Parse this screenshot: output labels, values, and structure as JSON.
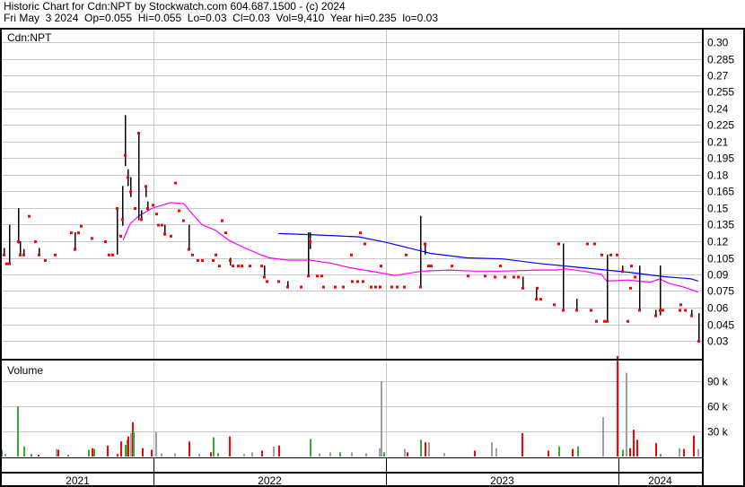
{
  "header": {
    "title": "Historic Chart for Cdn:NPT by Stockwatch.com 604.687.1500 - (c) 2024",
    "quote_line": "Fri May  3 2024  Op=0.055  Hi=0.055  Lo=0.03  Cl=0.03  Vol=9,410  Year hi=0.235  lo=0.03"
  },
  "colors": {
    "bar": "#000000",
    "close": "#ff0000",
    "ma_long": "#0000ff",
    "ma_short": "#ff00ff",
    "vol_up": "#33aa33",
    "vol_down": "#ff0000",
    "vol_flat": "#a0a0a0",
    "grid": "#c8c8c8"
  },
  "chart_data": {
    "type": "line",
    "symbol_label": "Cdn:NPT",
    "volume_label": "Volume",
    "price_axis": {
      "ylim": [
        0.03,
        0.3
      ],
      "ticks": [
        "0.30",
        "0.285",
        "0.27",
        "0.255",
        "0.24",
        "0.225",
        "0.21",
        "0.195",
        "0.18",
        "0.165",
        "0.15",
        "0.135",
        "0.12",
        "0.105",
        "0.09",
        "0.075",
        "0.06",
        "0.045",
        "0.03"
      ]
    },
    "volume_axis": {
      "ylim": [
        0,
        120000
      ],
      "ticks": [
        "90 k",
        "60 k",
        "30 k"
      ]
    },
    "x_axis": {
      "years": [
        "2021",
        "2022",
        "2023",
        "2024"
      ]
    },
    "grid": true,
    "price_bars_fields": [
      "t",
      "high",
      "low",
      "close"
    ],
    "price_bars": [
      [
        2021.355,
        0.114,
        0.108,
        0.108
      ],
      [
        2021.367,
        0.1,
        0.1,
        0.1
      ],
      [
        2021.379,
        0.135,
        0.1,
        0.1
      ],
      [
        2021.417,
        0.15,
        0.118,
        0.12
      ],
      [
        2021.425,
        0.12,
        0.108,
        0.108
      ],
      [
        2021.44,
        0.113,
        0.108,
        0.108
      ],
      [
        2021.464,
        0.143,
        0.143,
        0.143
      ],
      [
        2021.491,
        0.12,
        0.12,
        0.12
      ],
      [
        2021.506,
        0.114,
        0.108,
        0.108
      ],
      [
        2021.533,
        0.103,
        0.103,
        0.103
      ],
      [
        2021.575,
        0.108,
        0.108,
        0.108
      ],
      [
        2021.645,
        0.128,
        0.128,
        0.128
      ],
      [
        2021.66,
        0.128,
        0.113,
        0.113
      ],
      [
        2021.676,
        0.128,
        0.128,
        0.128
      ],
      [
        2021.687,
        0.134,
        0.134,
        0.134
      ],
      [
        2021.734,
        0.123,
        0.123,
        0.123
      ],
      [
        2021.792,
        0.12,
        0.12,
        0.12
      ],
      [
        2021.807,
        0.108,
        0.108,
        0.108
      ],
      [
        2021.823,
        0.108,
        0.108,
        0.108
      ],
      [
        2021.842,
        0.15,
        0.108,
        0.15
      ],
      [
        2021.857,
        0.125,
        0.125,
        0.125
      ],
      [
        2021.865,
        0.17,
        0.134,
        0.14
      ],
      [
        2021.877,
        0.234,
        0.188,
        0.198
      ],
      [
        2021.888,
        0.185,
        0.17,
        0.178
      ],
      [
        2021.9,
        0.178,
        0.16,
        0.165
      ],
      [
        2021.919,
        0.15,
        0.15,
        0.15
      ],
      [
        2021.934,
        0.219,
        0.139,
        0.218
      ],
      [
        2021.946,
        0.148,
        0.14,
        0.14
      ],
      [
        2021.965,
        0.17,
        0.16,
        0.17
      ],
      [
        2021.973,
        0.156,
        0.148,
        0.15
      ],
      [
        2021.996,
        0.153,
        0.153,
        0.153
      ],
      [
        2022.012,
        0.145,
        0.145,
        0.145
      ],
      [
        2022.019,
        0.135,
        0.135,
        0.135
      ],
      [
        2022.035,
        0.135,
        0.135,
        0.135
      ],
      [
        2022.046,
        0.135,
        0.125,
        0.127
      ],
      [
        2022.073,
        0.125,
        0.125,
        0.125
      ],
      [
        2022.093,
        0.173,
        0.173,
        0.173
      ],
      [
        2022.108,
        0.148,
        0.148,
        0.148
      ],
      [
        2022.127,
        0.139,
        0.139,
        0.139
      ],
      [
        2022.151,
        0.135,
        0.113,
        0.113
      ],
      [
        2022.166,
        0.108,
        0.108,
        0.108
      ],
      [
        2022.189,
        0.103,
        0.103,
        0.103
      ],
      [
        2022.209,
        0.103,
        0.103,
        0.103
      ],
      [
        2022.255,
        0.103,
        0.103,
        0.103
      ],
      [
        2022.266,
        0.108,
        0.108,
        0.108
      ],
      [
        2022.282,
        0.098,
        0.098,
        0.098
      ],
      [
        2022.293,
        0.139,
        0.139,
        0.139
      ],
      [
        2022.309,
        0.128,
        0.128,
        0.128
      ],
      [
        2022.328,
        0.105,
        0.098,
        0.103
      ],
      [
        2022.34,
        0.098,
        0.098,
        0.098
      ],
      [
        2022.363,
        0.098,
        0.098,
        0.098
      ],
      [
        2022.378,
        0.098,
        0.098,
        0.098
      ],
      [
        2022.413,
        0.098,
        0.098,
        0.098
      ],
      [
        2022.463,
        0.098,
        0.098,
        0.098
      ],
      [
        2022.475,
        0.098,
        0.089,
        0.088
      ],
      [
        2022.486,
        0.084,
        0.084,
        0.084
      ],
      [
        2022.537,
        0.084,
        0.084,
        0.084
      ],
      [
        2022.575,
        0.084,
        0.079,
        0.079
      ],
      [
        2022.633,
        0.079,
        0.079,
        0.079
      ],
      [
        2022.664,
        0.128,
        0.088,
        0.089
      ],
      [
        2022.672,
        0.128,
        0.113,
        0.12
      ],
      [
        2022.703,
        0.089,
        0.089,
        0.089
      ],
      [
        2022.722,
        0.089,
        0.089,
        0.089
      ],
      [
        2022.73,
        0.079,
        0.079,
        0.079
      ],
      [
        2022.78,
        0.079,
        0.079,
        0.079
      ],
      [
        2022.815,
        0.079,
        0.079,
        0.079
      ],
      [
        2022.849,
        0.108,
        0.108,
        0.108
      ],
      [
        2022.853,
        0.084,
        0.084,
        0.084
      ],
      [
        2022.876,
        0.084,
        0.084,
        0.084
      ],
      [
        2022.888,
        0.128,
        0.128,
        0.128
      ],
      [
        2022.899,
        0.084,
        0.084,
        0.084
      ],
      [
        2022.907,
        0.118,
        0.118,
        0.118
      ],
      [
        2022.934,
        0.079,
        0.079,
        0.079
      ],
      [
        2022.953,
        0.079,
        0.079,
        0.079
      ],
      [
        2022.973,
        0.079,
        0.079,
        0.079
      ],
      [
        2022.977,
        0.098,
        0.098,
        0.098
      ],
      [
        2023.023,
        0.079,
        0.079,
        0.079
      ],
      [
        2023.046,
        0.079,
        0.079,
        0.079
      ],
      [
        2023.077,
        0.079,
        0.079,
        0.079
      ],
      [
        2023.085,
        0.108,
        0.108,
        0.108
      ],
      [
        2023.146,
        0.143,
        0.079,
        0.079
      ],
      [
        2023.166,
        0.118,
        0.108,
        0.118
      ],
      [
        2023.181,
        0.098,
        0.098,
        0.098
      ],
      [
        2023.193,
        0.098,
        0.098,
        0.098
      ],
      [
        2023.282,
        0.098,
        0.098,
        0.098
      ],
      [
        2023.351,
        0.089,
        0.089,
        0.089
      ],
      [
        2023.424,
        0.089,
        0.089,
        0.089
      ],
      [
        2023.467,
        0.088,
        0.088,
        0.088
      ],
      [
        2023.49,
        0.098,
        0.098,
        0.098
      ],
      [
        2023.509,
        0.088,
        0.088,
        0.088
      ],
      [
        2023.548,
        0.088,
        0.088,
        0.088
      ],
      [
        2023.567,
        0.088,
        0.088,
        0.088
      ],
      [
        2023.587,
        0.088,
        0.078,
        0.078
      ],
      [
        2023.644,
        0.078,
        0.068,
        0.068
      ],
      [
        2023.648,
        0.078,
        0.078,
        0.078
      ],
      [
        2023.664,
        0.068,
        0.068,
        0.068
      ],
      [
        2023.722,
        0.063,
        0.063,
        0.063
      ],
      [
        2023.741,
        0.118,
        0.118,
        0.118
      ],
      [
        2023.76,
        0.118,
        0.058,
        0.058
      ],
      [
        2023.818,
        0.068,
        0.058,
        0.058
      ],
      [
        2023.864,
        0.118,
        0.118,
        0.118
      ],
      [
        2023.88,
        0.058,
        0.058,
        0.058
      ],
      [
        2023.895,
        0.118,
        0.118,
        0.118
      ],
      [
        2023.903,
        0.048,
        0.048,
        0.048
      ],
      [
        2023.926,
        0.108,
        0.108,
        0.108
      ],
      [
        2023.938,
        0.048,
        0.048,
        0.048
      ],
      [
        2023.949,
        0.108,
        0.048,
        0.048
      ],
      [
        2023.965,
        0.108,
        0.108,
        0.108
      ],
      [
        2023.992,
        0.108,
        0.108,
        0.108
      ],
      [
        2024.015,
        0.098,
        0.093,
        0.093
      ],
      [
        2024.038,
        0.048,
        0.048,
        0.048
      ],
      [
        2024.05,
        0.078,
        0.078,
        0.078
      ],
      [
        2024.054,
        0.098,
        0.098,
        0.098
      ],
      [
        2024.069,
        0.088,
        0.088,
        0.088
      ],
      [
        2024.088,
        0.098,
        0.058,
        0.058
      ],
      [
        2024.158,
        0.058,
        0.053,
        0.053
      ],
      [
        2024.177,
        0.098,
        0.053,
        0.058
      ],
      [
        2024.189,
        0.058,
        0.058,
        0.058
      ],
      [
        2024.262,
        0.058,
        0.058,
        0.058
      ],
      [
        2024.266,
        0.063,
        0.063,
        0.063
      ],
      [
        2024.285,
        0.058,
        0.058,
        0.058
      ],
      [
        2024.312,
        0.058,
        0.053,
        0.053
      ],
      [
        2024.343,
        0.055,
        0.03,
        0.03
      ]
    ],
    "series": [
      {
        "color_key": "ma_long",
        "points": [
          [
            2022.537,
            0.127
          ],
          [
            2022.672,
            0.126
          ],
          [
            2022.884,
            0.124
          ],
          [
            2023.0,
            0.119
          ],
          [
            2023.154,
            0.111
          ],
          [
            2023.193,
            0.109
          ],
          [
            2023.347,
            0.105
          ],
          [
            2023.502,
            0.104
          ],
          [
            2023.656,
            0.1
          ],
          [
            2023.849,
            0.096
          ],
          [
            2024.042,
            0.092
          ],
          [
            2024.197,
            0.088
          ],
          [
            2024.313,
            0.086
          ],
          [
            2024.343,
            0.084
          ]
        ]
      },
      {
        "color_key": "ma_short",
        "points": [
          [
            2021.869,
            0.121
          ],
          [
            2021.9,
            0.136
          ],
          [
            2021.938,
            0.143
          ],
          [
            2021.996,
            0.15
          ],
          [
            2022.073,
            0.155
          ],
          [
            2022.131,
            0.154
          ],
          [
            2022.17,
            0.144
          ],
          [
            2022.209,
            0.135
          ],
          [
            2022.266,
            0.13
          ],
          [
            2022.324,
            0.121
          ],
          [
            2022.382,
            0.115
          ],
          [
            2022.459,
            0.108
          ],
          [
            2022.498,
            0.105
          ],
          [
            2022.575,
            0.103
          ],
          [
            2022.672,
            0.103
          ],
          [
            2022.768,
            0.1
          ],
          [
            2022.846,
            0.096
          ],
          [
            2022.961,
            0.092
          ],
          [
            2023.039,
            0.089
          ],
          [
            2023.154,
            0.093
          ],
          [
            2023.27,
            0.094
          ],
          [
            2023.386,
            0.093
          ],
          [
            2023.502,
            0.093
          ],
          [
            2023.656,
            0.094
          ],
          [
            2023.734,
            0.094
          ],
          [
            2023.772,
            0.095
          ],
          [
            2023.849,
            0.093
          ],
          [
            2023.927,
            0.09
          ],
          [
            2023.95,
            0.084
          ],
          [
            2024.042,
            0.085
          ],
          [
            2024.081,
            0.084
          ],
          [
            2024.139,
            0.083
          ],
          [
            2024.178,
            0.086
          ],
          [
            2024.216,
            0.082
          ],
          [
            2024.274,
            0.079
          ],
          [
            2024.343,
            0.074
          ]
        ]
      }
    ],
    "volume_fields": [
      "t",
      "volume",
      "direction"
    ],
    "volume": [
      [
        2021.344,
        8000,
        "up"
      ],
      [
        2021.359,
        3000,
        "flat"
      ],
      [
        2021.413,
        60000,
        "up"
      ],
      [
        2021.44,
        12000,
        "up"
      ],
      [
        2021.471,
        3000,
        "up"
      ],
      [
        2021.502,
        2000,
        "down"
      ],
      [
        2021.58,
        9000,
        "flat"
      ],
      [
        2021.588,
        8000,
        "down"
      ],
      [
        2021.63,
        2000,
        "up"
      ],
      [
        2021.718,
        8000,
        "up"
      ],
      [
        2021.734,
        10000,
        "down"
      ],
      [
        2021.742,
        9000,
        "up"
      ],
      [
        2021.8,
        13000,
        "down"
      ],
      [
        2021.842,
        3000,
        "down"
      ],
      [
        2021.857,
        18000,
        "down"
      ],
      [
        2021.877,
        14000,
        "up"
      ],
      [
        2021.884,
        20000,
        "up"
      ],
      [
        2021.888,
        24000,
        "down"
      ],
      [
        2021.9,
        28000,
        "flat"
      ],
      [
        2021.907,
        41000,
        "down"
      ],
      [
        2021.911,
        30000,
        "up"
      ],
      [
        2021.95,
        10000,
        "down"
      ],
      [
        2021.989,
        8000,
        "down"
      ],
      [
        2022.008,
        29000,
        "flat"
      ],
      [
        2022.031,
        4000,
        "flat"
      ],
      [
        2022.089,
        4000,
        "flat"
      ],
      [
        2022.151,
        18000,
        "down"
      ],
      [
        2022.193,
        3000,
        "flat"
      ],
      [
        2022.243,
        5000,
        "down"
      ],
      [
        2022.255,
        23000,
        "up"
      ],
      [
        2022.274,
        4000,
        "up"
      ],
      [
        2022.324,
        24000,
        "down"
      ],
      [
        2022.386,
        3000,
        "flat"
      ],
      [
        2022.421,
        5000,
        "flat"
      ],
      [
        2022.463,
        7000,
        "down"
      ],
      [
        2022.513,
        12000,
        "flat"
      ],
      [
        2022.537,
        13000,
        "down"
      ],
      [
        2022.672,
        21000,
        "up"
      ],
      [
        2022.71,
        4000,
        "flat"
      ],
      [
        2022.757,
        5000,
        "flat"
      ],
      [
        2022.799,
        5000,
        "up"
      ],
      [
        2022.849,
        5000,
        "flat"
      ],
      [
        2022.911,
        4000,
        "flat"
      ],
      [
        2022.969,
        10000,
        "flat"
      ],
      [
        2022.977,
        90000,
        "flat"
      ],
      [
        2022.988,
        5000,
        "up"
      ],
      [
        2023.077,
        9000,
        "flat"
      ],
      [
        2023.089,
        5000,
        "down"
      ],
      [
        2023.146,
        20000,
        "up"
      ],
      [
        2023.166,
        17000,
        "down"
      ],
      [
        2023.181,
        17000,
        "flat"
      ],
      [
        2023.247,
        4000,
        "flat"
      ],
      [
        2023.378,
        7000,
        "down"
      ],
      [
        2023.451,
        17000,
        "flat"
      ],
      [
        2023.471,
        10000,
        "flat"
      ],
      [
        2023.583,
        28000,
        "down"
      ],
      [
        2023.695,
        7000,
        "down"
      ],
      [
        2023.741,
        12000,
        "up"
      ],
      [
        2023.799,
        9000,
        "down"
      ],
      [
        2023.823,
        12000,
        "up"
      ],
      [
        2023.93,
        47000,
        "flat"
      ],
      [
        2023.992,
        120000,
        "down"
      ],
      [
        2024.015,
        8000,
        "up"
      ],
      [
        2024.031,
        100000,
        "flat"
      ],
      [
        2024.046,
        10000,
        "down"
      ],
      [
        2024.061,
        32000,
        "down"
      ],
      [
        2024.077,
        20000,
        "down"
      ],
      [
        2024.158,
        16000,
        "down"
      ],
      [
        2024.177,
        3000,
        "up"
      ],
      [
        2024.258,
        10000,
        "flat"
      ],
      [
        2024.278,
        9000,
        "down"
      ],
      [
        2024.32,
        25000,
        "down"
      ],
      [
        2024.339,
        9000,
        "flat"
      ]
    ]
  }
}
